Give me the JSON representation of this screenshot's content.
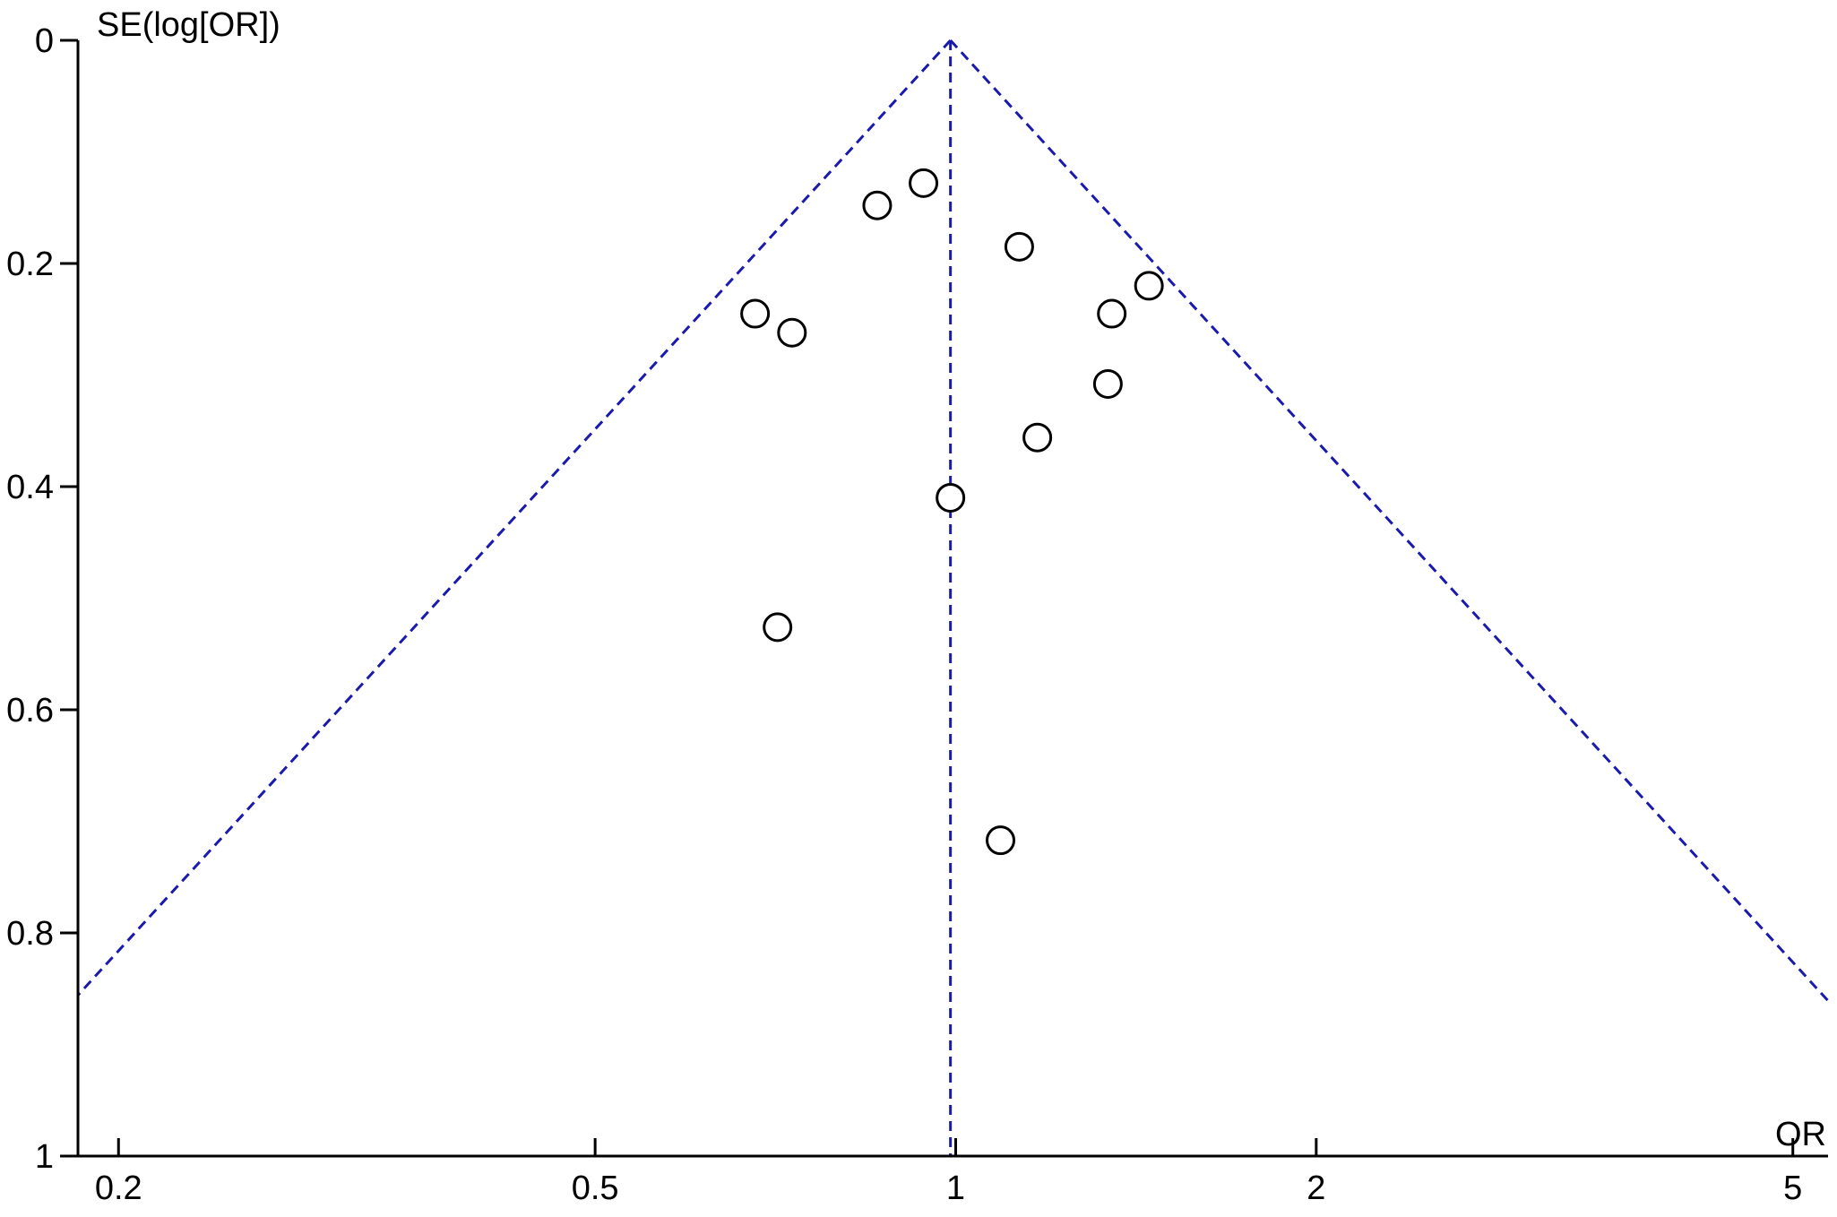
{
  "chart_data": {
    "type": "scatter",
    "subtype": "funnel-plot",
    "title": "",
    "xlabel": "OR",
    "ylabel": "SE(log[OR])",
    "x_scale": "log",
    "xlim": [
      0.185,
      5.35
    ],
    "ylim": [
      0,
      1
    ],
    "y_inverted": true,
    "x_ticks": [
      {
        "value": 0.2,
        "label": "0.2"
      },
      {
        "value": 0.5,
        "label": "0.5"
      },
      {
        "value": 1,
        "label": "1"
      },
      {
        "value": 2,
        "label": "2"
      },
      {
        "value": 5,
        "label": "5"
      }
    ],
    "y_ticks": [
      {
        "value": 0,
        "label": "0"
      },
      {
        "value": 0.2,
        "label": "0.2"
      },
      {
        "value": 0.4,
        "label": "0.4"
      },
      {
        "value": 0.6,
        "label": "0.6"
      },
      {
        "value": 0.8,
        "label": "0.8"
      },
      {
        "value": 1,
        "label": "1"
      }
    ],
    "pooled_or": 0.99,
    "funnel_lines_color": "#1a1aad",
    "marker_color": "#000000",
    "grid": false,
    "points": [
      {
        "x": 0.94,
        "y": 0.128
      },
      {
        "x": 0.86,
        "y": 0.148
      },
      {
        "x": 1.13,
        "y": 0.185
      },
      {
        "x": 1.45,
        "y": 0.22
      },
      {
        "x": 1.35,
        "y": 0.245
      },
      {
        "x": 0.68,
        "y": 0.245
      },
      {
        "x": 0.73,
        "y": 0.262
      },
      {
        "x": 1.34,
        "y": 0.308
      },
      {
        "x": 1.17,
        "y": 0.356
      },
      {
        "x": 0.99,
        "y": 0.41
      },
      {
        "x": 0.71,
        "y": 0.526
      },
      {
        "x": 1.09,
        "y": 0.717
      }
    ]
  }
}
